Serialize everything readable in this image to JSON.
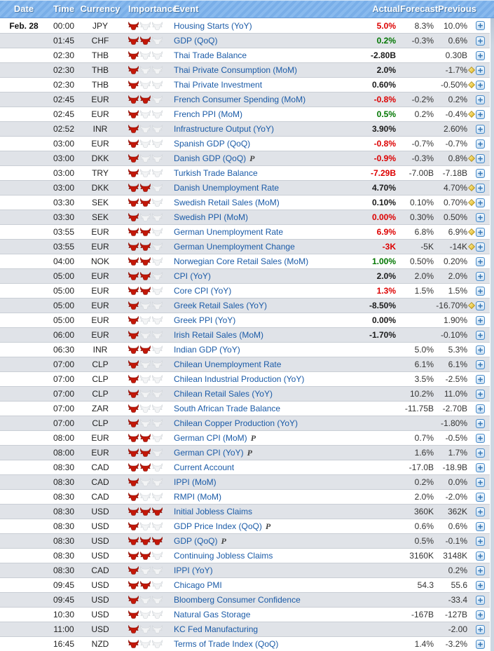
{
  "table": {
    "columns": {
      "date": "Date",
      "time": "Time",
      "currency": "Currency",
      "importance": "Importance",
      "event": "Event",
      "actual": "Actual",
      "forecast": "Forecast",
      "previous": "Previous"
    },
    "rows": [
      {
        "date": "Feb. 28",
        "time": "00:00",
        "currency": "JPY",
        "importance": 1,
        "event": "Housing Starts (YoY)",
        "actual": "5.0%",
        "actual_color": "red",
        "forecast": "8.3%",
        "previous": "10.0%",
        "diamond": false
      },
      {
        "date": "",
        "time": "01:45",
        "currency": "CHF",
        "importance": 2,
        "event": "GDP (QoQ)",
        "actual": "0.2%",
        "actual_color": "green",
        "forecast": "-0.3%",
        "previous": "0.6%",
        "diamond": false
      },
      {
        "date": "",
        "time": "02:30",
        "currency": "THB",
        "importance": 1,
        "event": "Thai Trade Balance",
        "actual": "-2.80B",
        "actual_color": "black",
        "forecast": "",
        "previous": "0.30B",
        "diamond": false
      },
      {
        "date": "",
        "time": "02:30",
        "currency": "THB",
        "importance": 1,
        "event": "Thai Private Consumption (MoM)",
        "actual": "2.0%",
        "actual_color": "black",
        "forecast": "",
        "previous": "-1.7%",
        "diamond": true
      },
      {
        "date": "",
        "time": "02:30",
        "currency": "THB",
        "importance": 1,
        "event": "Thai Private Investment",
        "actual": "0.60%",
        "actual_color": "black",
        "forecast": "",
        "previous": "-0.50%",
        "diamond": true
      },
      {
        "date": "",
        "time": "02:45",
        "currency": "EUR",
        "importance": 2,
        "event": "French Consumer Spending (MoM)",
        "actual": "-0.8%",
        "actual_color": "red",
        "forecast": "-0.2%",
        "previous": "0.2%",
        "diamond": false
      },
      {
        "date": "",
        "time": "02:45",
        "currency": "EUR",
        "importance": 1,
        "event": "French PPI (MoM)",
        "actual": "0.5%",
        "actual_color": "green",
        "forecast": "0.2%",
        "previous": "-0.4%",
        "diamond": true
      },
      {
        "date": "",
        "time": "02:52",
        "currency": "INR",
        "importance": 1,
        "event": "Infrastructure Output (YoY)",
        "actual": "3.90%",
        "actual_color": "black",
        "forecast": "",
        "previous": "2.60%",
        "diamond": false
      },
      {
        "date": "",
        "time": "03:00",
        "currency": "EUR",
        "importance": 1,
        "event": "Spanish GDP (QoQ)",
        "actual": "-0.8%",
        "actual_color": "red",
        "forecast": "-0.7%",
        "previous": "-0.7%",
        "diamond": false
      },
      {
        "date": "",
        "time": "03:00",
        "currency": "DKK",
        "importance": 1,
        "event": "Danish GDP (QoQ)",
        "flag": "P",
        "actual": "-0.9%",
        "actual_color": "red",
        "forecast": "-0.3%",
        "previous": "0.8%",
        "diamond": true
      },
      {
        "date": "",
        "time": "03:00",
        "currency": "TRY",
        "importance": 1,
        "event": "Turkish Trade Balance",
        "actual": "-7.29B",
        "actual_color": "red",
        "forecast": "-7.00B",
        "previous": "-7.18B",
        "diamond": false
      },
      {
        "date": "",
        "time": "03:00",
        "currency": "DKK",
        "importance": 2,
        "event": "Danish Unemployment Rate",
        "actual": "4.70%",
        "actual_color": "black",
        "forecast": "",
        "previous": "4.70%",
        "diamond": true
      },
      {
        "date": "",
        "time": "03:30",
        "currency": "SEK",
        "importance": 2,
        "event": "Swedish Retail Sales (MoM)",
        "actual": "0.10%",
        "actual_color": "black",
        "forecast": "0.10%",
        "previous": "0.70%",
        "diamond": true
      },
      {
        "date": "",
        "time": "03:30",
        "currency": "SEK",
        "importance": 1,
        "event": "Swedish PPI (MoM)",
        "actual": "0.00%",
        "actual_color": "red",
        "forecast": "0.30%",
        "previous": "0.50%",
        "diamond": false
      },
      {
        "date": "",
        "time": "03:55",
        "currency": "EUR",
        "importance": 2,
        "event": "German Unemployment Rate",
        "actual": "6.9%",
        "actual_color": "red",
        "forecast": "6.8%",
        "previous": "6.9%",
        "diamond": true
      },
      {
        "date": "",
        "time": "03:55",
        "currency": "EUR",
        "importance": 2,
        "event": "German Unemployment Change",
        "actual": "-3K",
        "actual_color": "red",
        "forecast": "-5K",
        "previous": "-14K",
        "diamond": true
      },
      {
        "date": "",
        "time": "04:00",
        "currency": "NOK",
        "importance": 2,
        "event": "Norwegian Core Retail Sales (MoM)",
        "actual": "1.00%",
        "actual_color": "green",
        "forecast": "0.50%",
        "previous": "0.20%",
        "diamond": false
      },
      {
        "date": "",
        "time": "05:00",
        "currency": "EUR",
        "importance": 2,
        "event": "CPI (YoY)",
        "actual": "2.0%",
        "actual_color": "black",
        "forecast": "2.0%",
        "previous": "2.0%",
        "diamond": false
      },
      {
        "date": "",
        "time": "05:00",
        "currency": "EUR",
        "importance": 2,
        "event": "Core CPI (YoY)",
        "actual": "1.3%",
        "actual_color": "red",
        "forecast": "1.5%",
        "previous": "1.5%",
        "diamond": false
      },
      {
        "date": "",
        "time": "05:00",
        "currency": "EUR",
        "importance": 1,
        "event": "Greek Retail Sales (YoY)",
        "actual": "-8.50%",
        "actual_color": "black",
        "forecast": "",
        "previous": "-16.70%",
        "diamond": true
      },
      {
        "date": "",
        "time": "05:00",
        "currency": "EUR",
        "importance": 1,
        "event": "Greek PPI (YoY)",
        "actual": "0.00%",
        "actual_color": "black",
        "forecast": "",
        "previous": "1.90%",
        "diamond": false
      },
      {
        "date": "",
        "time": "06:00",
        "currency": "EUR",
        "importance": 1,
        "event": "Irish Retail Sales (MoM)",
        "actual": "-1.70%",
        "actual_color": "black",
        "forecast": "",
        "previous": "-0.10%",
        "diamond": false
      },
      {
        "date": "",
        "time": "06:30",
        "currency": "INR",
        "importance": 2,
        "event": "Indian GDP (YoY)",
        "actual": "",
        "forecast": "5.0%",
        "previous": "5.3%",
        "diamond": false
      },
      {
        "date": "",
        "time": "07:00",
        "currency": "CLP",
        "importance": 1,
        "event": "Chilean Unemployment Rate",
        "actual": "",
        "forecast": "6.1%",
        "previous": "6.1%",
        "diamond": false
      },
      {
        "date": "",
        "time": "07:00",
        "currency": "CLP",
        "importance": 1,
        "event": "Chilean Industrial Production (YoY)",
        "actual": "",
        "forecast": "3.5%",
        "previous": "-2.5%",
        "diamond": false
      },
      {
        "date": "",
        "time": "07:00",
        "currency": "CLP",
        "importance": 1,
        "event": "Chilean Retail Sales (YoY)",
        "actual": "",
        "forecast": "10.2%",
        "previous": "11.0%",
        "diamond": false
      },
      {
        "date": "",
        "time": "07:00",
        "currency": "ZAR",
        "importance": 1,
        "event": "South African Trade Balance",
        "actual": "",
        "forecast": "-11.75B",
        "previous": "-2.70B",
        "diamond": false
      },
      {
        "date": "",
        "time": "07:00",
        "currency": "CLP",
        "importance": 1,
        "event": "Chilean Copper Production (YoY)",
        "actual": "",
        "forecast": "",
        "previous": "-1.80%",
        "diamond": false
      },
      {
        "date": "",
        "time": "08:00",
        "currency": "EUR",
        "importance": 2,
        "event": "German CPI (MoM)",
        "flag": "P",
        "actual": "",
        "forecast": "0.7%",
        "previous": "-0.5%",
        "diamond": false
      },
      {
        "date": "",
        "time": "08:00",
        "currency": "EUR",
        "importance": 2,
        "event": "German CPI (YoY)",
        "flag": "P",
        "actual": "",
        "forecast": "1.6%",
        "previous": "1.7%",
        "diamond": false
      },
      {
        "date": "",
        "time": "08:30",
        "currency": "CAD",
        "importance": 2,
        "event": "Current Account",
        "actual": "",
        "forecast": "-17.0B",
        "previous": "-18.9B",
        "diamond": false
      },
      {
        "date": "",
        "time": "08:30",
        "currency": "CAD",
        "importance": 1,
        "event": "IPPI (MoM)",
        "actual": "",
        "forecast": "0.2%",
        "previous": "0.0%",
        "diamond": false
      },
      {
        "date": "",
        "time": "08:30",
        "currency": "CAD",
        "importance": 1,
        "event": "RMPI (MoM)",
        "actual": "",
        "forecast": "2.0%",
        "previous": "-2.0%",
        "diamond": false
      },
      {
        "date": "",
        "time": "08:30",
        "currency": "USD",
        "importance": 3,
        "event": "Initial Jobless Claims",
        "actual": "",
        "forecast": "360K",
        "previous": "362K",
        "diamond": false
      },
      {
        "date": "",
        "time": "08:30",
        "currency": "USD",
        "importance": 1,
        "event": "GDP Price Index (QoQ)",
        "flag": "P",
        "actual": "",
        "forecast": "0.6%",
        "previous": "0.6%",
        "diamond": false
      },
      {
        "date": "",
        "time": "08:30",
        "currency": "USD",
        "importance": 3,
        "event": "GDP (QoQ)",
        "flag": "P",
        "actual": "",
        "forecast": "0.5%",
        "previous": "-0.1%",
        "diamond": false
      },
      {
        "date": "",
        "time": "08:30",
        "currency": "USD",
        "importance": 2,
        "event": "Continuing Jobless Claims",
        "actual": "",
        "forecast": "3160K",
        "previous": "3148K",
        "diamond": false
      },
      {
        "date": "",
        "time": "08:30",
        "currency": "CAD",
        "importance": 1,
        "event": "IPPI (YoY)",
        "actual": "",
        "forecast": "",
        "previous": "0.2%",
        "diamond": false
      },
      {
        "date": "",
        "time": "09:45",
        "currency": "USD",
        "importance": 2,
        "event": "Chicago PMI",
        "actual": "",
        "forecast": "54.3",
        "previous": "55.6",
        "diamond": false
      },
      {
        "date": "",
        "time": "09:45",
        "currency": "USD",
        "importance": 1,
        "event": "Bloomberg Consumer Confidence",
        "actual": "",
        "forecast": "",
        "previous": "-33.4",
        "diamond": false
      },
      {
        "date": "",
        "time": "10:30",
        "currency": "USD",
        "importance": 1,
        "event": "Natural Gas Storage",
        "actual": "",
        "forecast": "-167B",
        "previous": "-127B",
        "diamond": false
      },
      {
        "date": "",
        "time": "11:00",
        "currency": "USD",
        "importance": 1,
        "event": "KC Fed Manufacturing",
        "actual": "",
        "forecast": "",
        "previous": "-2.00",
        "diamond": false
      },
      {
        "date": "",
        "time": "16:45",
        "currency": "NZD",
        "importance": 1,
        "event": "Terms of Trade Index (QoQ)",
        "actual": "",
        "forecast": "1.4%",
        "previous": "-3.2%",
        "diamond": false
      }
    ]
  },
  "icons": {
    "bull": "bull-icon",
    "diamond": "diamond-icon",
    "expand": "expand-plus-icon"
  },
  "colors": {
    "header_blue": "#79aee8",
    "header_blue_light": "#89baee",
    "row_alt": "#e0e3e8",
    "row_divider": "#c9ced5",
    "event_link": "#1b5ba7",
    "actual_red": "#dd0000",
    "actual_green": "#007600",
    "actual_black": "#1a1a1a",
    "bull_red": "#c41708",
    "bull_inactive": "#f3f4f5",
    "diamond_gold": "#e3b71c",
    "plus_blue": "#4a8bc8"
  }
}
